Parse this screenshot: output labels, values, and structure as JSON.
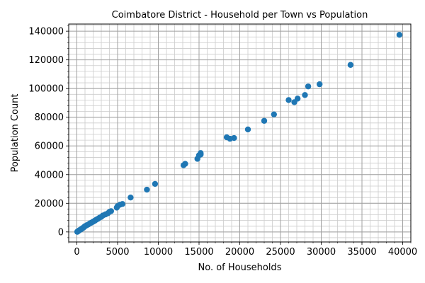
{
  "chart_data": {
    "type": "scatter",
    "title": "Coimbatore District - Household per Town vs Population",
    "xlabel": "No. of Households",
    "ylabel": "Population Count",
    "xlim": [
      -1000,
      41000
    ],
    "ylim": [
      -7000,
      145000
    ],
    "xticks": [
      0,
      5000,
      10000,
      15000,
      20000,
      25000,
      30000,
      35000,
      40000
    ],
    "yticks": [
      0,
      20000,
      40000,
      60000,
      80000,
      100000,
      120000,
      140000
    ],
    "xtick_labels": [
      "0",
      "5000",
      "10000",
      "15000",
      "20000",
      "25000",
      "30000",
      "35000",
      "40000"
    ],
    "ytick_labels": [
      "0",
      "20000",
      "40000",
      "60000",
      "80000",
      "100000",
      "120000",
      "140000"
    ],
    "grid": true,
    "minor_grid": true,
    "marker_color": "#1f77b4",
    "series": [
      {
        "points": [
          [
            39600,
            137500
          ],
          [
            33600,
            116500
          ],
          [
            29800,
            103000
          ],
          [
            28400,
            101500
          ],
          [
            28000,
            95500
          ],
          [
            27100,
            93000
          ],
          [
            26700,
            90500
          ],
          [
            26000,
            92000
          ],
          [
            24200,
            82000
          ],
          [
            23000,
            77500
          ],
          [
            21000,
            71500
          ],
          [
            19300,
            65500
          ],
          [
            18800,
            65000
          ],
          [
            18400,
            66000
          ],
          [
            15200,
            55000
          ],
          [
            15000,
            53500
          ],
          [
            15200,
            54000
          ],
          [
            14800,
            51000
          ],
          [
            13300,
            47500
          ],
          [
            13100,
            46500
          ],
          [
            9600,
            33500
          ],
          [
            8600,
            29500
          ],
          [
            6600,
            24000
          ],
          [
            5600,
            19500
          ],
          [
            5300,
            19000
          ],
          [
            5000,
            18000
          ],
          [
            4900,
            17000
          ],
          [
            4200,
            14500
          ],
          [
            4000,
            14000
          ],
          [
            3800,
            13000
          ],
          [
            3500,
            12200
          ],
          [
            3200,
            11500
          ],
          [
            3000,
            10500
          ],
          [
            2800,
            10000
          ],
          [
            2600,
            9200
          ],
          [
            2400,
            8600
          ],
          [
            2200,
            7800
          ],
          [
            2000,
            7200
          ],
          [
            1800,
            6500
          ],
          [
            1600,
            6000
          ],
          [
            1400,
            5200
          ],
          [
            1200,
            4600
          ],
          [
            1000,
            4000
          ],
          [
            900,
            3500
          ],
          [
            800,
            3000
          ],
          [
            700,
            2600
          ],
          [
            600,
            2200
          ],
          [
            500,
            1800
          ],
          [
            400,
            1500
          ],
          [
            300,
            1100
          ],
          [
            200,
            800
          ],
          [
            150,
            500
          ],
          [
            100,
            300
          ],
          [
            50,
            100
          ]
        ]
      }
    ]
  }
}
